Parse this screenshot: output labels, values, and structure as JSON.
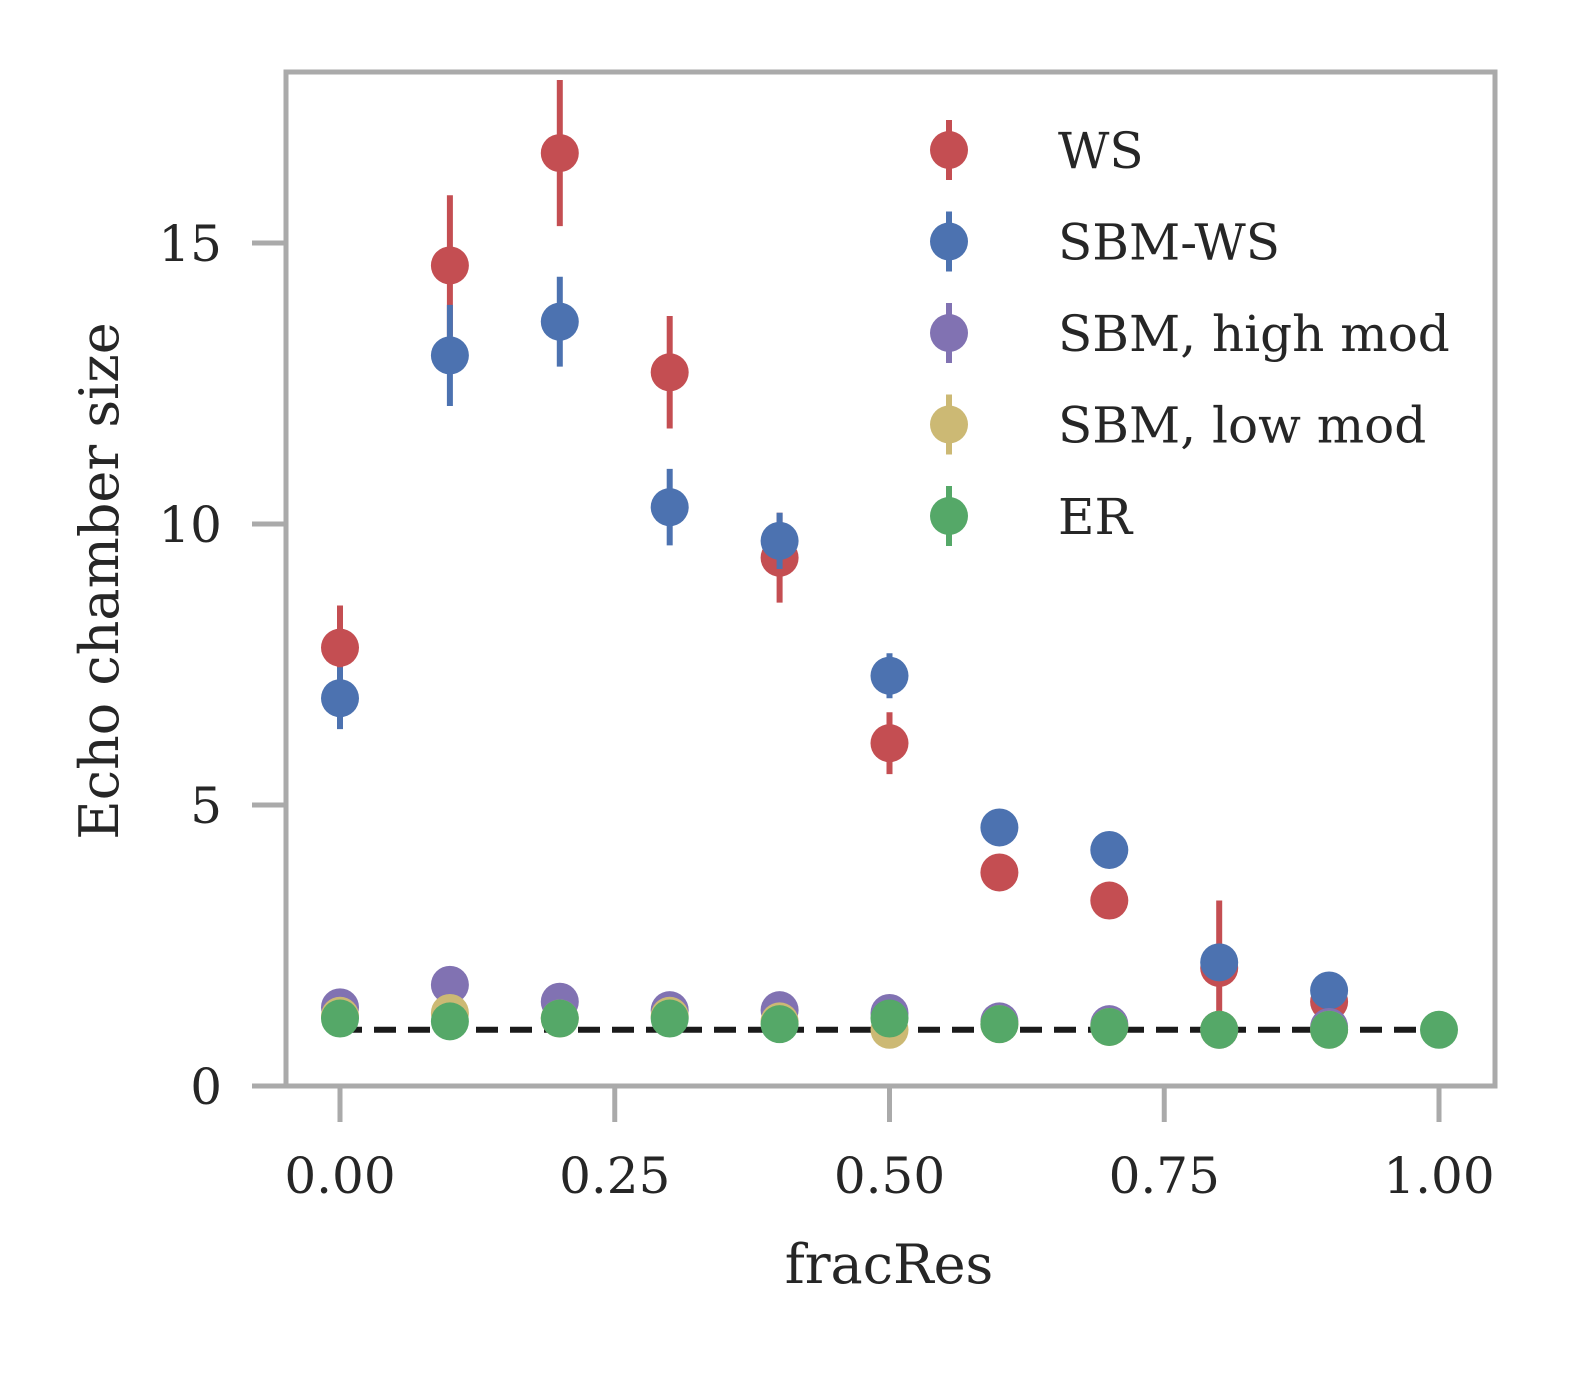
{
  "chart_data": {
    "type": "scatter",
    "xlabel": "fracRes",
    "ylabel": "Echo chamber size",
    "xlim": [
      -0.05,
      1.05
    ],
    "ylim": [
      0,
      18
    ],
    "xticks": [
      0.0,
      0.25,
      0.5,
      0.75,
      1.0
    ],
    "xtick_labels": [
      "0.00",
      "0.25",
      "0.50",
      "0.75",
      "1.00"
    ],
    "yticks": [
      0,
      5,
      10,
      15
    ],
    "ytick_labels": [
      "0",
      "5",
      "10",
      "15"
    ],
    "grid": false,
    "legend_position": "top-right",
    "reference_line": {
      "y": 1.0,
      "style": "dashed",
      "color": "#1a1a1a"
    },
    "series": [
      {
        "name": "WS",
        "color": "#c44e52",
        "x": [
          0.0,
          0.1,
          0.2,
          0.3,
          0.4,
          0.5,
          0.6,
          0.7,
          0.8,
          0.9
        ],
        "y": [
          7.8,
          14.6,
          16.6,
          12.7,
          9.4,
          6.1,
          3.8,
          3.3,
          2.1,
          1.5
        ],
        "err": [
          0.75,
          1.25,
          1.3,
          1.0,
          0.8,
          0.55,
          0.3,
          0.1,
          1.2,
          0.1
        ]
      },
      {
        "name": "SBM-WS",
        "color": "#4c72b0",
        "x": [
          0.0,
          0.1,
          0.2,
          0.3,
          0.4,
          0.5,
          0.6,
          0.7,
          0.8,
          0.9
        ],
        "y": [
          6.9,
          13.0,
          13.6,
          10.3,
          9.7,
          7.3,
          4.6,
          4.2,
          2.2,
          1.7
        ],
        "err": [
          0.55,
          0.9,
          0.8,
          0.68,
          0.5,
          0.4,
          0.1,
          0.1,
          0.1,
          0.1
        ]
      },
      {
        "name": "SBM, high mod",
        "color": "#8172b2",
        "x": [
          0.0,
          0.1,
          0.2,
          0.3,
          0.4,
          0.5,
          0.6,
          0.7,
          0.8,
          0.9
        ],
        "y": [
          1.4,
          1.8,
          1.5,
          1.35,
          1.35,
          1.3,
          1.15,
          1.1,
          1.0,
          1.05
        ],
        "err": [
          0.05,
          0.05,
          0.05,
          0.05,
          0.05,
          0.05,
          0.05,
          0.05,
          0.05,
          0.05
        ]
      },
      {
        "name": "SBM, low mod",
        "color": "#ccb974",
        "x": [
          0.0,
          0.1,
          0.2,
          0.3,
          0.4,
          0.5,
          0.6,
          0.7,
          0.8,
          0.9
        ],
        "y": [
          1.25,
          1.3,
          1.2,
          1.25,
          1.15,
          1.0,
          1.1,
          1.05,
          1.0,
          1.0
        ],
        "err": [
          0.05,
          0.05,
          0.05,
          0.05,
          0.05,
          0.05,
          0.05,
          0.05,
          0.05,
          0.05
        ]
      },
      {
        "name": "ER",
        "color": "#55a868",
        "x": [
          0.0,
          0.1,
          0.2,
          0.3,
          0.4,
          0.5,
          0.6,
          0.7,
          0.8,
          0.9,
          1.0
        ],
        "y": [
          1.2,
          1.15,
          1.2,
          1.2,
          1.1,
          1.2,
          1.1,
          1.05,
          1.0,
          1.0,
          1.0
        ],
        "err": [
          0.05,
          0.05,
          0.05,
          0.05,
          0.05,
          0.05,
          0.05,
          0.05,
          0.05,
          0.05,
          0.05
        ]
      }
    ]
  }
}
